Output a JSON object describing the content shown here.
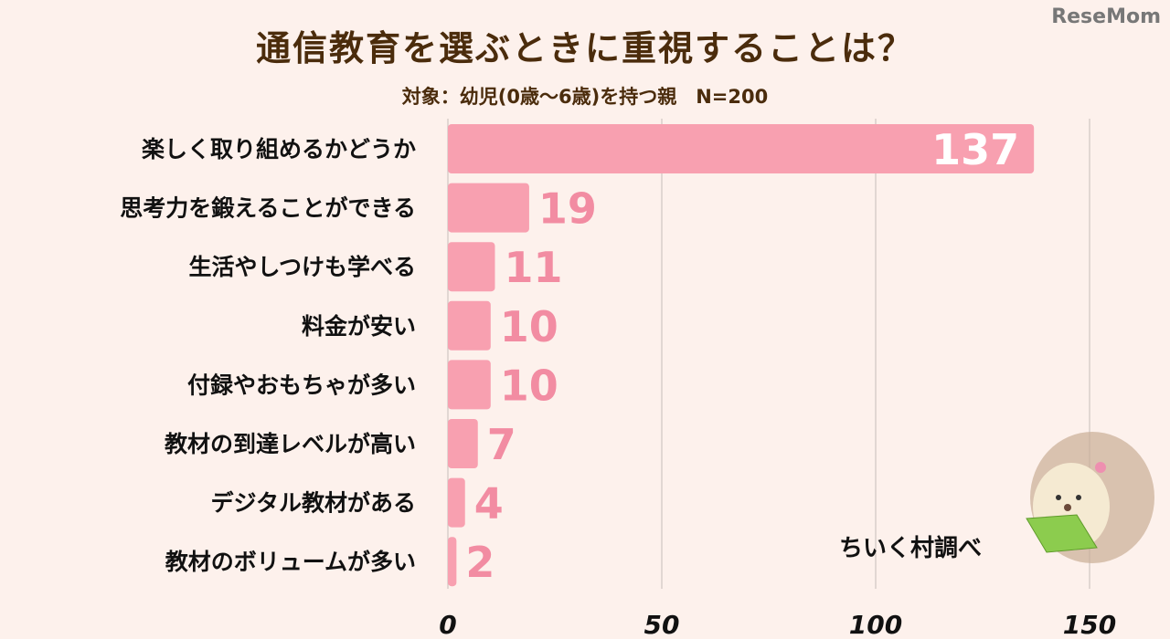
{
  "chart_data": {
    "type": "bar",
    "orientation": "horizontal",
    "title": "通信教育を選ぶときに重視することは？",
    "subtitle": "対象：幼児(0歳～6歳)を持つ親　N=200",
    "categories": [
      "楽しく取り組めるかどうか",
      "思考力を鍛えることができる",
      "生活やしつけも学べる",
      "料金が安い",
      "付録やおもちゃが多い",
      "教材の到達レベルが高い",
      "デジタル教材がある",
      "教材のボリュームが多い"
    ],
    "values": [
      137,
      19,
      11,
      10,
      10,
      7,
      4,
      2
    ],
    "xlim": [
      0,
      150
    ],
    "xticks": [
      "0",
      "50",
      "100",
      "150"
    ],
    "grid": true,
    "colors": {
      "bar": "#f8a0b0",
      "value_label": "#f28ca2",
      "value_label_inside": "#ffffff",
      "text": "#4b2c0c"
    }
  },
  "credit": "ちいく村調べ",
  "logo": "ReseMom"
}
